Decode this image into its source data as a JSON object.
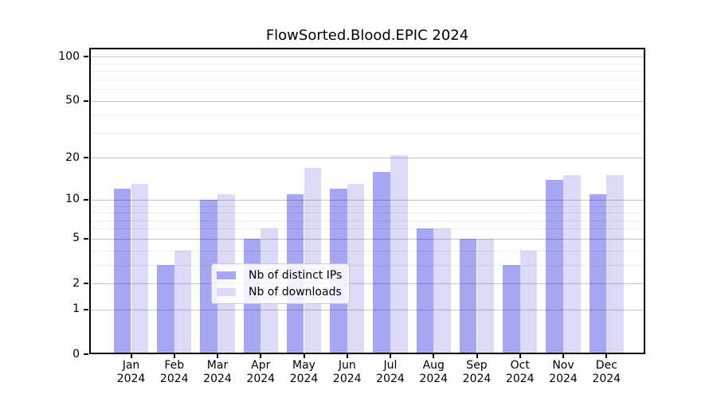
{
  "title": "FlowSorted.Blood.EPIC 2024",
  "chart_data": {
    "type": "bar",
    "title": "FlowSorted.Blood.EPIC 2024",
    "scale": "log1p",
    "categories": [
      "Jan",
      "Feb",
      "Mar",
      "Apr",
      "May",
      "Jun",
      "Jul",
      "Aug",
      "Sep",
      "Oct",
      "Nov",
      "Dec"
    ],
    "year_label": "2024",
    "series": [
      {
        "name": "Nb of distinct IPs",
        "color": "#a6a6f2",
        "values": [
          12,
          3,
          10,
          5,
          11,
          12,
          16,
          6,
          5,
          3,
          14,
          11
        ]
      },
      {
        "name": "Nb of downloads",
        "color": "#dbdbf8",
        "values": [
          13,
          4,
          11,
          6,
          17,
          13,
          21,
          6,
          5,
          4,
          15,
          15
        ]
      }
    ],
    "yticks": [
      0,
      1,
      2,
      5,
      10,
      20,
      50,
      100
    ],
    "minor_gridlines": [
      3,
      4,
      6,
      7,
      8,
      9,
      30,
      40,
      60,
      70,
      80,
      90
    ],
    "ylim": [
      0,
      115
    ],
    "xlabel": "",
    "ylabel": "",
    "grid": true,
    "grid_above_bars": true,
    "legend_position": "lower-center"
  },
  "legend": {
    "items": [
      {
        "label": "Nb of distinct IPs",
        "color": "#a6a6f2"
      },
      {
        "label": "Nb of downloads",
        "color": "#dbdbf8"
      }
    ]
  },
  "colors": {
    "bar_ips": "#a6a6f2",
    "bar_downloads": "#dbdbf8",
    "major_grid": "#c9c9c9",
    "minor_grid": "#ededed",
    "axis": "#000000",
    "background": "#ffffff",
    "legend_border": "#cccccc"
  }
}
